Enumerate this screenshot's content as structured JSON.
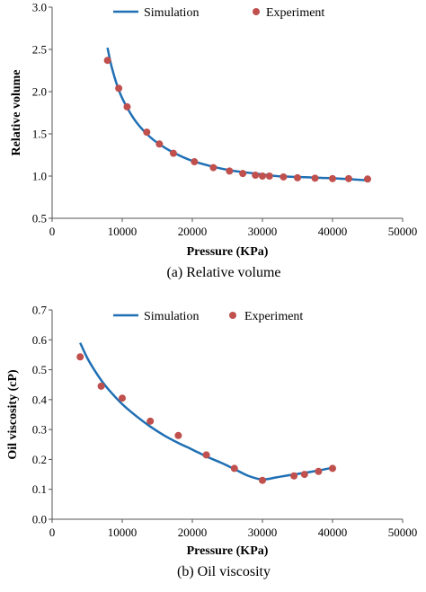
{
  "chart_data": [
    {
      "type": "line",
      "caption": "(a) Relative volume",
      "xlabel": "Pressure (KPa)",
      "ylabel": "Relative volume",
      "xlim": [
        0,
        50000
      ],
      "ylim": [
        0.5,
        3.0
      ],
      "xticks": [
        0,
        10000,
        20000,
        30000,
        40000,
        50000
      ],
      "yticks": [
        0.5,
        1.0,
        1.5,
        2.0,
        2.5,
        3.0
      ],
      "xtick_labels": [
        "0",
        "10000",
        "20000",
        "30000",
        "40000",
        "50000"
      ],
      "ytick_labels": [
        "0.5",
        "1.0",
        "1.5",
        "2.0",
        "2.5",
        "3.0"
      ],
      "grid": false,
      "legend_position": "top",
      "series": [
        {
          "name": "Simulation",
          "kind": "line",
          "color": "#1f6fb4",
          "x": [
            7900,
            8500,
            9500,
            10500,
            12000,
            14000,
            16000,
            18000,
            20000,
            23000,
            26000,
            29000,
            32000,
            35000,
            38000,
            41000,
            45000
          ],
          "y": [
            2.52,
            2.29,
            2.02,
            1.84,
            1.64,
            1.46,
            1.34,
            1.25,
            1.18,
            1.11,
            1.06,
            1.03,
            1.0,
            0.99,
            0.98,
            0.97,
            0.95
          ]
        },
        {
          "name": "Experiment",
          "kind": "scatter",
          "color": "#c0504d",
          "x": [
            7900,
            9500,
            10700,
            13500,
            15300,
            17300,
            20300,
            23000,
            25300,
            27200,
            29000,
            30000,
            31000,
            33000,
            35000,
            37500,
            40000,
            42300,
            45000
          ],
          "y": [
            2.37,
            2.04,
            1.82,
            1.52,
            1.38,
            1.27,
            1.17,
            1.1,
            1.06,
            1.03,
            1.01,
            1.0,
            1.0,
            0.99,
            0.98,
            0.975,
            0.97,
            0.97,
            0.965
          ]
        }
      ]
    },
    {
      "type": "line",
      "caption": "(b) Oil viscosity",
      "xlabel": "Pressure (KPa)",
      "ylabel": "Oil viscosity (cP)",
      "xlim": [
        0,
        50000
      ],
      "ylim": [
        0.0,
        0.7
      ],
      "xticks": [
        0,
        10000,
        20000,
        30000,
        40000,
        50000
      ],
      "yticks": [
        0.0,
        0.1,
        0.2,
        0.3,
        0.4,
        0.5,
        0.6,
        0.7
      ],
      "xtick_labels": [
        "0",
        "10000",
        "20000",
        "30000",
        "40000",
        "50000"
      ],
      "ytick_labels": [
        "0.0",
        "0.1",
        "0.2",
        "0.3",
        "0.4",
        "0.5",
        "0.6",
        "0.7"
      ],
      "grid": false,
      "legend_position": "top",
      "series": [
        {
          "name": "Simulation",
          "kind": "line",
          "color": "#1f6fb4",
          "x": [
            4000,
            5000,
            6000,
            7000,
            8000,
            10000,
            12000,
            14000,
            16000,
            18000,
            20000,
            22000,
            24000,
            26000,
            28000,
            30000,
            32000,
            34000,
            36000,
            38000,
            40000
          ],
          "y": [
            0.59,
            0.54,
            0.5,
            0.465,
            0.435,
            0.385,
            0.345,
            0.31,
            0.28,
            0.255,
            0.233,
            0.21,
            0.19,
            0.168,
            0.145,
            0.133,
            0.14,
            0.148,
            0.155,
            0.163,
            0.172
          ]
        },
        {
          "name": "Experiment",
          "kind": "scatter",
          "color": "#c0504d",
          "x": [
            4000,
            7000,
            10000,
            14000,
            18000,
            22000,
            26000,
            30000,
            34500,
            36000,
            38000,
            40000
          ],
          "y": [
            0.543,
            0.445,
            0.405,
            0.328,
            0.28,
            0.215,
            0.17,
            0.13,
            0.145,
            0.15,
            0.16,
            0.17
          ]
        }
      ]
    }
  ]
}
